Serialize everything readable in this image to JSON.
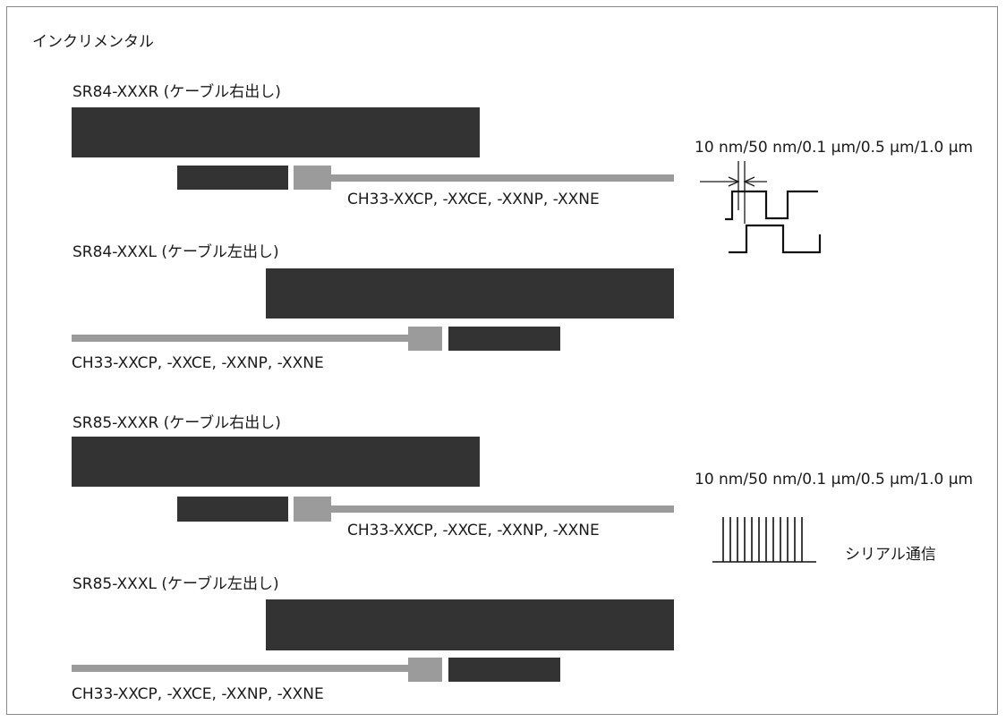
{
  "section_title": "インクリメンタル",
  "units": [
    {
      "title": "SR84-XXXR (ケーブル右出し)",
      "cable_label": "CH33-XXCP, -XXCE, -XXNP, -XXNE"
    },
    {
      "title": "SR84-XXXL (ケーブル左出し)",
      "cable_label": "CH33-XXCP, -XXCE, -XXNP, -XXNE"
    },
    {
      "title": "SR85-XXXR (ケーブル右出し)",
      "cable_label": "CH33-XXCP, -XXCE, -XXNP, -XXNE"
    },
    {
      "title": "SR85-XXXL (ケーブル左出し)",
      "cable_label": "CH33-XXCP, -XXCE, -XXNP, -XXNE"
    }
  ],
  "signals": {
    "ab_phase_resolution": "10 nm/50 nm/0.1 μm/0.5 μm/1.0 μm",
    "serial_resolution": "10 nm/50 nm/0.1 μm/0.5 μm/1.0 μm",
    "serial_label": "シリアル通信"
  },
  "colors": {
    "body": "#333333",
    "cable": "#9b9b9b",
    "frame": "#888888"
  }
}
